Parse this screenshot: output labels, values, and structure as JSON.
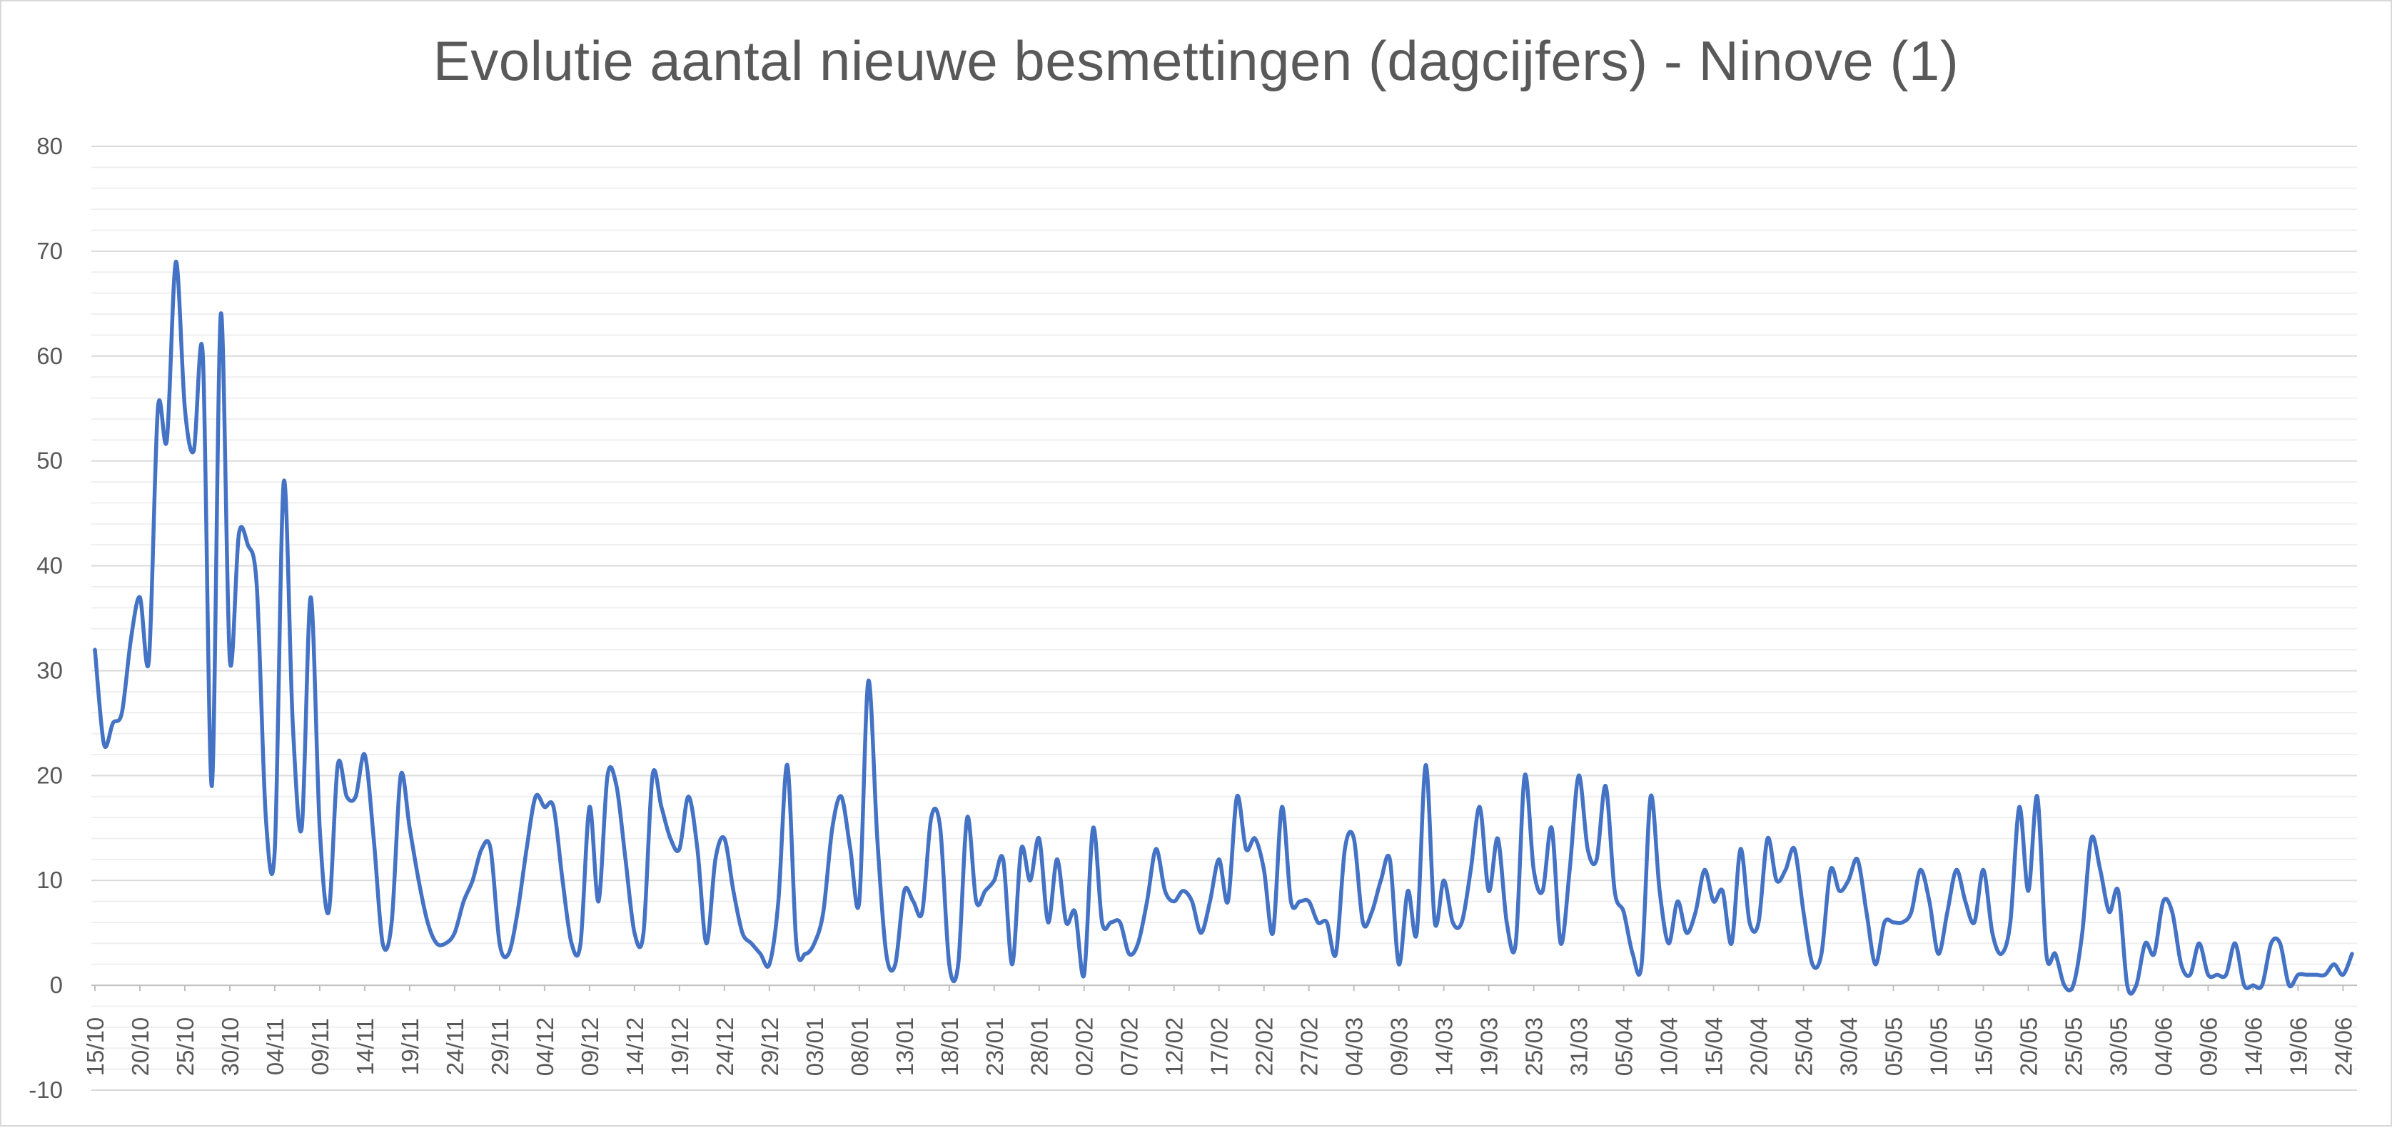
{
  "chart_data": {
    "type": "line",
    "title": "Evolutie aantal nieuwe besmettingen (dagcijfers) - Ninove (1)",
    "xlabel": "",
    "ylabel": "",
    "ylim": [
      -10,
      80
    ],
    "yticks": [
      "-10",
      "0",
      "10",
      "20",
      "30",
      "40",
      "50",
      "60",
      "70",
      "80"
    ],
    "xtick_labels": [
      "15/10",
      "20/10",
      "25/10",
      "30/10",
      "04/11",
      "09/11",
      "14/11",
      "19/11",
      "24/11",
      "29/11",
      "04/12",
      "09/12",
      "14/12",
      "19/12",
      "24/12",
      "29/12",
      "03/01",
      "08/01",
      "13/01",
      "18/01",
      "23/01",
      "28/01",
      "02/02",
      "07/02",
      "12/02",
      "17/02",
      "22/02",
      "27/02",
      "04/03",
      "09/03",
      "14/03",
      "19/03",
      "25/03",
      "31/03",
      "05/04",
      "10/04",
      "15/04",
      "20/04",
      "25/04",
      "30/04",
      "05/05",
      "10/05",
      "15/05",
      "20/05",
      "25/05",
      "30/05",
      "04/06",
      "09/06",
      "14/06",
      "19/06",
      "24/06"
    ],
    "grid": {
      "major": true,
      "minor": true
    },
    "line_color": "#4472c4",
    "series": [
      {
        "values": [
          32,
          23,
          25,
          26,
          33,
          37,
          31,
          55,
          52,
          69,
          55,
          51,
          60,
          19,
          64,
          31,
          43,
          42,
          38,
          16,
          13,
          48,
          25,
          15,
          37,
          15,
          7,
          21,
          18,
          18,
          22,
          14,
          4,
          6,
          20,
          15,
          10,
          6,
          4,
          4,
          5,
          8,
          10,
          13,
          13,
          4,
          3,
          7,
          13,
          18,
          17,
          17,
          10,
          4,
          4,
          17,
          8,
          20,
          19,
          12,
          5,
          5,
          20,
          17,
          14,
          13,
          18,
          13,
          4,
          12,
          14,
          9,
          5,
          4,
          3,
          2,
          8,
          21,
          4,
          3,
          4,
          7,
          15,
          18,
          13,
          8,
          29,
          14,
          3,
          2,
          9,
          8,
          7,
          16,
          15,
          2,
          2,
          16,
          8,
          9,
          10,
          12,
          2,
          13,
          10,
          14,
          6,
          12,
          6,
          7,
          1,
          15,
          6,
          6,
          6,
          3,
          4,
          8,
          13,
          9,
          8,
          9,
          8,
          5,
          8,
          12,
          8,
          18,
          13,
          14,
          11,
          5,
          17,
          8,
          8,
          8,
          6,
          6,
          3,
          13,
          14,
          6,
          7,
          10,
          12,
          2,
          9,
          5,
          21,
          6,
          10,
          6,
          6,
          11,
          17,
          9,
          14,
          6,
          4,
          20,
          11,
          9,
          15,
          4,
          11,
          20,
          13,
          12,
          19,
          9,
          7,
          3,
          2,
          18,
          9,
          4,
          8,
          5,
          7,
          11,
          8,
          9,
          4,
          13,
          6,
          6,
          14,
          10,
          11,
          13,
          7,
          2,
          3,
          11,
          9,
          10,
          12,
          7,
          2,
          6,
          6,
          6,
          7,
          11,
          8,
          3,
          7,
          11,
          8,
          6,
          11,
          5,
          3,
          6,
          17,
          9,
          18,
          3,
          3,
          0,
          0,
          5,
          14,
          11,
          7,
          9,
          0,
          0,
          4,
          3,
          8,
          7,
          2,
          1,
          4,
          1,
          1,
          1,
          4,
          0,
          0,
          0,
          4,
          4,
          0,
          1,
          1,
          1,
          1,
          2,
          1,
          3
        ]
      }
    ]
  }
}
